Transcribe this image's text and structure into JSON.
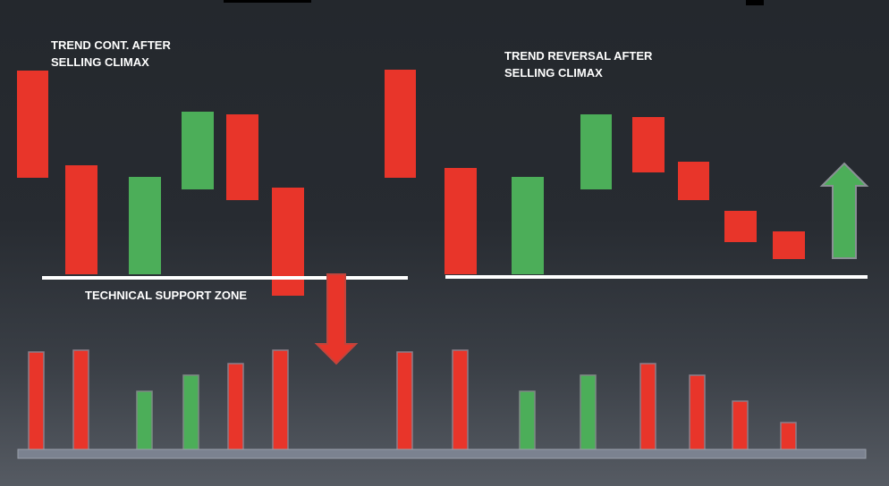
{
  "colors": {
    "bearish": "#e8352a",
    "bullish": "#4cae59",
    "support_line": "#ffffff",
    "volume_base": "#7b8290",
    "arrow_down": "#e8352a",
    "arrow_up": "#4cae59"
  },
  "labels": {
    "left_title_line1": "TREND CONT. AFTER",
    "left_title_line2": "SELLING CLIMAX",
    "right_title_line1": "TREND REVERSAL AFTER",
    "right_title_line2": "SELLING CLIMAX",
    "support_zone": "TECHNICAL SUPPORT ZONE"
  },
  "left_scenario": {
    "candles": [
      {
        "dir": "down"
      },
      {
        "dir": "down"
      },
      {
        "dir": "up"
      },
      {
        "dir": "up"
      },
      {
        "dir": "down"
      },
      {
        "dir": "down"
      },
      {
        "dir": "down"
      }
    ],
    "volume_bars": [
      {
        "dir": "down",
        "level": 0.95
      },
      {
        "dir": "down",
        "level": 0.98
      },
      {
        "dir": "up",
        "level": 0.57
      },
      {
        "dir": "up",
        "level": 0.74
      },
      {
        "dir": "down",
        "level": 0.85
      },
      {
        "dir": "down",
        "level": 0.98
      },
      {
        "dir": "down",
        "level": 0.96
      },
      {
        "dir": "down",
        "level": 0.98
      }
    ],
    "breakout_arrow": "arrow-down"
  },
  "right_scenario": {
    "candles": [
      {
        "dir": "down"
      },
      {
        "dir": "up"
      },
      {
        "dir": "up"
      },
      {
        "dir": "down"
      },
      {
        "dir": "down"
      },
      {
        "dir": "down"
      },
      {
        "dir": "down"
      }
    ],
    "volume_bars": [
      {
        "dir": "up",
        "level": 0.57
      },
      {
        "dir": "up",
        "level": 0.74
      },
      {
        "dir": "down",
        "level": 0.85
      },
      {
        "dir": "down",
        "level": 0.74
      },
      {
        "dir": "down",
        "level": 0.48
      },
      {
        "dir": "down",
        "level": 0.26
      }
    ],
    "reversal_arrow": "arrow-up"
  }
}
